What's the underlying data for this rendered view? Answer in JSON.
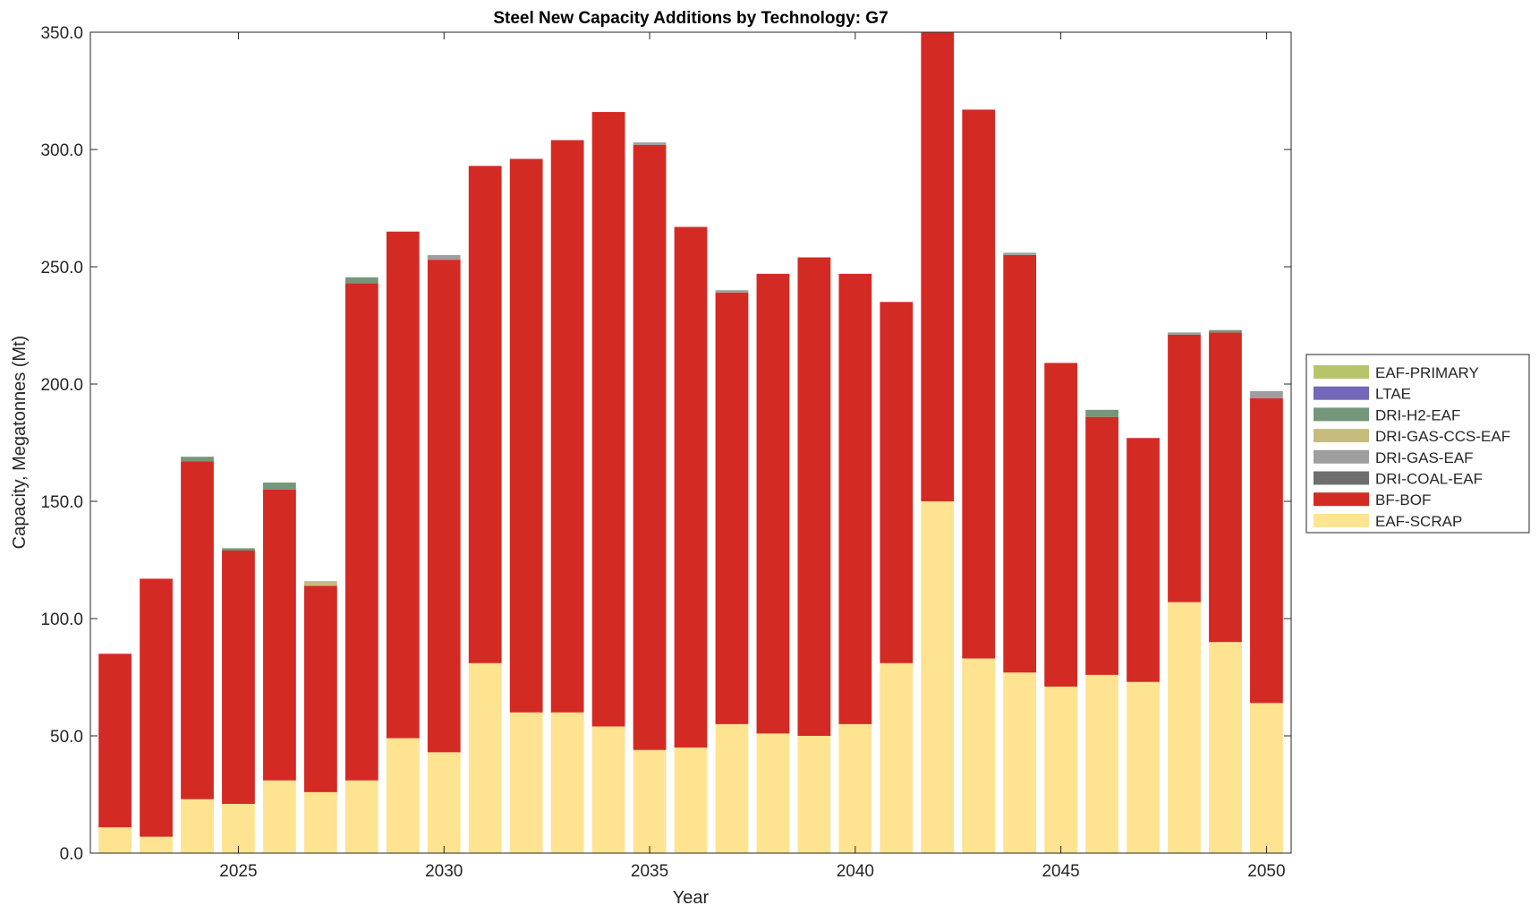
{
  "chart_data": {
    "type": "bar",
    "stacked": true,
    "title": "Steel New Capacity Additions by Technology: G7",
    "xlabel": "Year",
    "ylabel": "Capacity, Megatonnes (Mt)",
    "ylim": [
      0,
      350
    ],
    "xlim": [
      2021.4,
      2050.6
    ],
    "yticks": [
      "0.0",
      "50.0",
      "100.0",
      "150.0",
      "200.0",
      "250.0",
      "300.0",
      "350.0"
    ],
    "ytick_values": [
      0,
      50,
      100,
      150,
      200,
      250,
      300,
      350
    ],
    "xticks": [
      "2025",
      "2030",
      "2035",
      "2040",
      "2045",
      "2050"
    ],
    "xtick_values": [
      2025,
      2030,
      2035,
      2040,
      2045,
      2050
    ],
    "legend_position": "right",
    "x": [
      2022,
      2023,
      2024,
      2025,
      2026,
      2027,
      2028,
      2029,
      2030,
      2031,
      2032,
      2033,
      2034,
      2035,
      2036,
      2037,
      2038,
      2039,
      2040,
      2041,
      2042,
      2043,
      2044,
      2045,
      2046,
      2047,
      2048,
      2049,
      2050
    ],
    "series": [
      {
        "name": "EAF-SCRAP",
        "color": "#FEE391",
        "values": [
          11,
          7,
          23,
          21,
          31,
          26,
          31,
          49,
          43,
          81,
          60,
          60,
          54,
          44,
          45,
          55,
          51,
          50,
          55,
          81,
          150,
          83,
          77,
          71,
          76,
          73,
          107,
          90,
          64
        ]
      },
      {
        "name": "BF-BOF",
        "color": "#D42A24",
        "values": [
          74,
          110,
          144,
          108,
          124,
          88,
          212,
          216,
          210,
          212,
          236,
          244,
          262,
          258,
          222,
          184,
          196,
          204,
          192,
          154,
          202,
          234,
          178,
          138,
          110,
          104,
          114,
          132,
          130
        ]
      },
      {
        "name": "DRI-COAL-EAF",
        "color": "#6E6E6E",
        "values": [
          0,
          0,
          0,
          0,
          0,
          0,
          0,
          0,
          0,
          0,
          0,
          0,
          0,
          0,
          0,
          0,
          0,
          0,
          0,
          0,
          0,
          0,
          0,
          0,
          0,
          0,
          0,
          0,
          0
        ]
      },
      {
        "name": "DRI-GAS-EAF",
        "color": "#9E9E9E",
        "values": [
          0,
          0,
          0,
          0,
          0,
          0,
          0,
          0,
          2,
          0,
          0,
          0,
          0,
          1,
          0,
          1,
          0,
          0,
          0,
          0,
          0,
          0,
          1,
          0,
          0,
          0,
          1,
          0,
          3
        ]
      },
      {
        "name": "DRI-GAS-CCS-EAF",
        "color": "#C6BC7E",
        "values": [
          0,
          0,
          0,
          0,
          0,
          2,
          0,
          0,
          0,
          0,
          0,
          0,
          0,
          0,
          0,
          0,
          0,
          0,
          0,
          0,
          0,
          0,
          0,
          0,
          0,
          0,
          0,
          0,
          0
        ]
      },
      {
        "name": "DRI-H2-EAF",
        "color": "#74967A",
        "values": [
          0,
          0,
          2,
          1,
          3,
          0,
          2.5,
          0,
          0,
          0,
          0,
          0,
          0,
          0,
          0,
          0,
          0,
          0,
          0,
          0,
          0,
          0,
          0,
          0,
          3,
          0,
          0,
          1,
          0
        ]
      },
      {
        "name": "LTAE",
        "color": "#7468B8",
        "values": [
          0,
          0,
          0,
          0,
          0,
          0,
          0,
          0,
          0,
          0,
          0,
          0,
          0,
          0,
          0,
          0,
          0,
          0,
          0,
          0,
          0,
          0,
          0,
          0,
          0,
          0,
          0,
          0,
          0
        ]
      },
      {
        "name": "EAF-PRIMARY",
        "color": "#B9C46A",
        "values": [
          0,
          0,
          0,
          0,
          0,
          0,
          0,
          0,
          0,
          0,
          0,
          0,
          0,
          0,
          0,
          0,
          0,
          0,
          0,
          0,
          0,
          0,
          0,
          0,
          0,
          0,
          0,
          0,
          0
        ]
      }
    ],
    "legend_order": [
      "EAF-PRIMARY",
      "LTAE",
      "DRI-H2-EAF",
      "DRI-GAS-CCS-EAF",
      "DRI-GAS-EAF",
      "DRI-COAL-EAF",
      "BF-BOF",
      "EAF-SCRAP"
    ]
  }
}
